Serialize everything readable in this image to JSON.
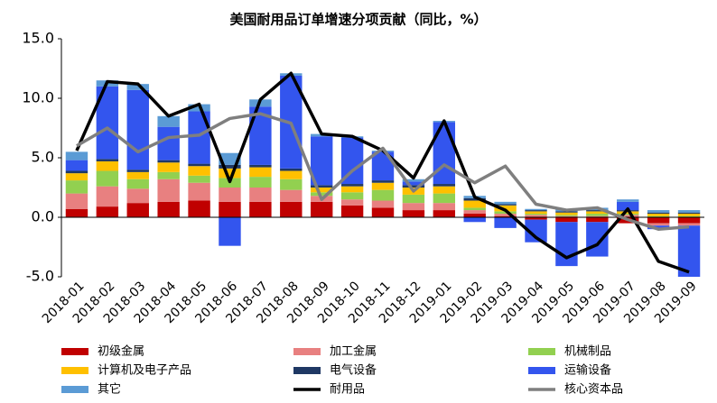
{
  "chart_data": {
    "type": "bar",
    "stacked": true,
    "title": "美国耐用品订单增速分项贡献（同比，%）",
    "categories": [
      "2018-01",
      "2018-02",
      "2018-03",
      "2018-04",
      "2018-05",
      "2018-06",
      "2018-07",
      "2018-08",
      "2018-09",
      "2018-10",
      "2018-11",
      "2018-12",
      "2019-01",
      "2019-02",
      "2019-03",
      "2019-04",
      "2019-05",
      "2019-06",
      "2019-07",
      "2019-08",
      "2019-09"
    ],
    "ylim": [
      -5,
      15
    ],
    "yticks": [
      {
        "value": -5,
        "label": "-5.0"
      },
      {
        "value": 0,
        "label": "0.0"
      },
      {
        "value": 5,
        "label": "5.0"
      },
      {
        "value": 10,
        "label": "10.0"
      },
      {
        "value": 15,
        "label": "15.0"
      }
    ],
    "series": [
      {
        "name": "初级金属",
        "color": "#c00000",
        "values": [
          0.7,
          0.9,
          1.2,
          1.3,
          1.4,
          1.3,
          1.3,
          1.3,
          1.3,
          1.0,
          0.8,
          0.6,
          0.6,
          0.3,
          0.1,
          -0.2,
          -0.4,
          -0.4,
          -0.5,
          -0.5,
          -0.5
        ]
      },
      {
        "name": "加工金属",
        "color": "#e88080",
        "values": [
          1.3,
          1.7,
          1.2,
          1.9,
          1.5,
          1.2,
          1.2,
          1.0,
          0.5,
          0.5,
          0.6,
          0.6,
          0.6,
          0.3,
          0.2,
          0.2,
          0.1,
          0.1,
          0.2,
          -0.2,
          -0.2
        ]
      },
      {
        "name": "机械制品",
        "color": "#92d050",
        "values": [
          1.1,
          1.3,
          0.8,
          0.6,
          0.6,
          0.8,
          0.9,
          0.9,
          0.3,
          0.6,
          0.9,
          0.7,
          0.8,
          0.2,
          0.2,
          0.1,
          0.1,
          0.2,
          0.1,
          0.1,
          0.1
        ]
      },
      {
        "name": "计算机及电子产品",
        "color": "#ffc000",
        "values": [
          0.6,
          0.8,
          0.6,
          0.8,
          0.8,
          0.8,
          0.8,
          0.7,
          0.4,
          0.5,
          0.6,
          0.6,
          0.6,
          0.6,
          0.5,
          0.2,
          0.2,
          0.2,
          0.2,
          0.2,
          0.2
        ]
      },
      {
        "name": "电气设备",
        "color": "#1f3864",
        "values": [
          0.2,
          0.2,
          0.2,
          0.2,
          0.2,
          0.3,
          0.2,
          0.2,
          0.2,
          0.2,
          0.2,
          0.2,
          0.2,
          0.2,
          0.1,
          0.1,
          0.1,
          0.1,
          0.1,
          0.1,
          0.1
        ]
      },
      {
        "name": "运输设备",
        "color": "#3355ee",
        "values": [
          0.9,
          6.1,
          6.7,
          2.8,
          4.4,
          -2.4,
          4.9,
          7.8,
          4.1,
          3.9,
          2.4,
          0.3,
          5.2,
          -0.4,
          -0.9,
          -1.9,
          -3.7,
          -2.9,
          0.7,
          -0.3,
          -4.3
        ]
      },
      {
        "name": "其它",
        "color": "#5b9bd5",
        "values": [
          0.7,
          0.5,
          0.5,
          0.9,
          0.6,
          1.0,
          0.6,
          0.2,
          0.2,
          0.1,
          0.1,
          0.2,
          0.1,
          0.2,
          0.2,
          0.1,
          0.2,
          0.2,
          0.2,
          0.2,
          0.2
        ]
      },
      {
        "name": "耐用品",
        "type": "line",
        "color": "#000000",
        "values": [
          5.6,
          11.4,
          11.2,
          8.5,
          9.5,
          3.0,
          9.9,
          12.1,
          7.0,
          6.8,
          5.6,
          3.3,
          8.1,
          1.7,
          0.6,
          -1.7,
          -3.4,
          -2.3,
          0.7,
          -3.7,
          -4.6
        ]
      },
      {
        "name": "核心资本品",
        "type": "line",
        "color": "#7f7f7f",
        "values": [
          6.0,
          7.5,
          5.5,
          6.7,
          6.9,
          8.3,
          8.7,
          7.9,
          1.5,
          3.9,
          5.8,
          2.2,
          4.4,
          2.9,
          4.3,
          1.1,
          0.6,
          0.8,
          -0.2,
          -1.0,
          -0.8
        ]
      }
    ]
  }
}
